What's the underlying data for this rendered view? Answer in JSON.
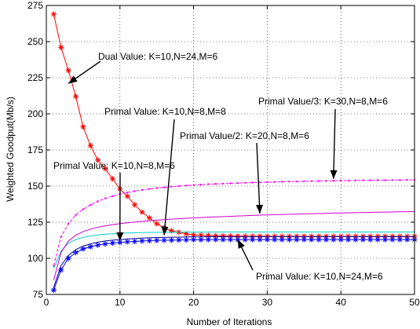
{
  "chart_data": {
    "type": "line",
    "title": "",
    "xlabel": "Number of Iterations",
    "ylabel": "Weighted Goodput(Mb/s)",
    "xlim": [
      0,
      50
    ],
    "ylim": [
      75,
      275
    ],
    "xticks": [
      0,
      10,
      20,
      30,
      40,
      50
    ],
    "yticks": [
      75,
      100,
      125,
      150,
      175,
      200,
      225,
      250,
      275
    ],
    "grid": true,
    "legend": "none",
    "series": [
      {
        "key": "dual",
        "color": "#ff0000",
        "marker": "star",
        "x": [
          1,
          2,
          3,
          4,
          5,
          6,
          7,
          8,
          9,
          10,
          11,
          12,
          13,
          14,
          15,
          16,
          17,
          18,
          19,
          20,
          21,
          22,
          23,
          24,
          25,
          26,
          27,
          28,
          29,
          30,
          31,
          32,
          33,
          34,
          35,
          36,
          37,
          38,
          39,
          40,
          41,
          42,
          43,
          44,
          45,
          46,
          47,
          48,
          49,
          50
        ],
        "values": [
          269,
          246,
          230,
          212,
          191,
          178,
          168,
          162,
          155,
          148,
          143,
          137,
          132,
          128,
          124,
          121,
          119,
          118,
          117,
          116.2,
          116,
          115.8,
          115.6,
          115.5,
          115.4,
          115.4,
          115.3,
          115.3,
          115.3,
          115.3,
          115.2,
          115.2,
          115.2,
          115.2,
          115.2,
          115.2,
          115.2,
          115.2,
          115.2,
          115.2,
          115.2,
          115.2,
          115.2,
          115.2,
          115.2,
          115.2,
          115.2,
          115.2,
          115.2,
          115.2
        ]
      },
      {
        "key": "primal_k10_n24",
        "color": "#0000ff",
        "marker": "star",
        "x": [
          1,
          2,
          3,
          4,
          5,
          6,
          7,
          8,
          9,
          10,
          11,
          12,
          13,
          14,
          15,
          16,
          17,
          18,
          19,
          20,
          21,
          22,
          23,
          24,
          25,
          26,
          27,
          28,
          29,
          30,
          31,
          32,
          33,
          34,
          35,
          36,
          37,
          38,
          39,
          40,
          41,
          42,
          43,
          44,
          45,
          46,
          47,
          48,
          49,
          50
        ],
        "values": [
          78,
          92,
          100,
          104,
          106.5,
          108,
          109.2,
          110,
          110.5,
          111,
          111.4,
          111.7,
          112,
          112.2,
          112.4,
          112.5,
          112.6,
          112.7,
          112.8,
          112.9,
          112.9,
          113,
          113,
          113,
          113,
          113,
          113,
          113,
          113,
          113,
          113,
          113,
          113,
          113,
          113,
          113,
          113,
          113,
          113,
          113,
          113,
          113,
          113,
          113,
          113,
          113,
          113,
          113,
          113,
          113
        ]
      },
      {
        "key": "primal_k10_n8_m6",
        "color": "#000099",
        "marker": "none",
        "x": [
          1,
          2,
          3,
          4,
          5,
          6,
          7,
          8,
          9,
          10,
          11,
          12,
          13,
          14,
          15,
          16,
          17,
          18,
          19,
          20,
          21,
          22,
          23,
          24,
          25,
          26,
          27,
          28,
          29,
          30,
          31,
          32,
          33,
          34,
          35,
          36,
          37,
          38,
          39,
          40,
          41,
          42,
          43,
          44,
          45,
          46,
          47,
          48,
          49,
          50
        ],
        "values": [
          80,
          95,
          102,
          106,
          108.5,
          110,
          111.2,
          112,
          112.6,
          113,
          113.4,
          113.7,
          114,
          114.2,
          114.4,
          114.5,
          114.6,
          114.7,
          114.8,
          114.9,
          114.9,
          115,
          115,
          115,
          115,
          115,
          115,
          115,
          115,
          115,
          115,
          115,
          115,
          115,
          115,
          115,
          115,
          115,
          115,
          115,
          115,
          115,
          115,
          115,
          115,
          115,
          115,
          115,
          115,
          115
        ]
      },
      {
        "key": "primal_k10_n8_m8",
        "color": "#00cccc",
        "marker": "none",
        "x": [
          1,
          2,
          3,
          4,
          5,
          6,
          7,
          8,
          9,
          10,
          11,
          12,
          13,
          14,
          15,
          16,
          17,
          18,
          19,
          20,
          21,
          22,
          23,
          24,
          25,
          26,
          27,
          28,
          29,
          30,
          31,
          32,
          33,
          34,
          35,
          36,
          37,
          38,
          39,
          40,
          41,
          42,
          43,
          44,
          45,
          46,
          47,
          48,
          49,
          50
        ],
        "values": [
          93,
          105,
          110.5,
          113,
          114.5,
          115.5,
          116.2,
          116.7,
          117,
          117.3,
          117.5,
          117.7,
          117.8,
          117.9,
          118,
          118,
          118.1,
          118.1,
          118.2,
          118.2,
          118.2,
          118.2,
          118.3,
          118.3,
          118.3,
          118.3,
          118.3,
          118.3,
          118.3,
          118.3,
          118.3,
          118.3,
          118.3,
          118.3,
          118.3,
          118.3,
          118.3,
          118.3,
          118.3,
          118.3,
          118.3,
          118.3,
          118.3,
          118.3,
          118.3,
          118.3,
          118.3,
          118.3,
          118.3,
          118.3
        ]
      },
      {
        "key": "primal_half_k20",
        "color": "#cc00cc",
        "marker": "none",
        "x": [
          1,
          2,
          3,
          4,
          5,
          6,
          7,
          8,
          9,
          10,
          11,
          12,
          13,
          14,
          15,
          16,
          17,
          18,
          19,
          20,
          21,
          22,
          23,
          24,
          25,
          26,
          27,
          28,
          29,
          30,
          31,
          32,
          33,
          34,
          35,
          36,
          37,
          38,
          39,
          40,
          41,
          42,
          43,
          44,
          45,
          46,
          47,
          48,
          49,
          50
        ],
        "values": [
          85,
          104,
          112,
          116,
          118.5,
          120.2,
          121.5,
          122.5,
          123.3,
          124,
          124.6,
          125.1,
          125.6,
          126,
          126.4,
          126.8,
          127.1,
          127.4,
          127.7,
          128,
          128.2,
          128.5,
          128.7,
          128.9,
          129.1,
          129.3,
          129.5,
          129.7,
          129.9,
          130,
          130.2,
          130.3,
          130.5,
          130.6,
          130.8,
          130.9,
          131,
          131.1,
          131.3,
          131.4,
          131.5,
          131.6,
          131.7,
          131.8,
          131.9,
          132,
          132.1,
          132.2,
          132.3,
          132.4
        ]
      },
      {
        "key": "primal_third_k30",
        "color": "#ff00ff",
        "marker": "dot",
        "x": [
          1,
          2,
          3,
          4,
          5,
          6,
          7,
          8,
          9,
          10,
          11,
          12,
          13,
          14,
          15,
          16,
          17,
          18,
          19,
          20,
          21,
          22,
          23,
          24,
          25,
          26,
          27,
          28,
          29,
          30,
          31,
          32,
          33,
          34,
          35,
          36,
          37,
          38,
          39,
          40,
          41,
          42,
          43,
          44,
          45,
          46,
          47,
          48,
          49,
          50
        ],
        "values": [
          95,
          115,
          124,
          130,
          134,
          137,
          139.5,
          141.5,
          143,
          144.5,
          145.6,
          146.5,
          147.3,
          148,
          148.6,
          149.1,
          149.6,
          150,
          150.4,
          150.7,
          151,
          151.3,
          151.5,
          151.7,
          151.9,
          152.1,
          152.3,
          152.4,
          152.6,
          152.7,
          152.8,
          153,
          153.1,
          153.2,
          153.3,
          153.4,
          153.5,
          153.6,
          153.7,
          153.8,
          153.8,
          153.9,
          154,
          154,
          154.1,
          154.1,
          154.2,
          154.2,
          154.3,
          154.3
        ]
      }
    ],
    "annotations": [
      {
        "text": "Dual Value: K=10,N=24,M=6",
        "point": [
          3,
          221
        ]
      },
      {
        "text": "Primal Value: K=10,N=8,M=8",
        "point": [
          16,
          116
        ]
      },
      {
        "text": "Primal Value/3: K=30,N=8,M=6",
        "point": [
          39,
          155
        ]
      },
      {
        "text": "Primal Value/2: K=20,N=8,M=6",
        "point": [
          29,
          131
        ]
      },
      {
        "text": "Primal Value: K=10,N=8,M=6",
        "point": [
          10,
          112
        ]
      },
      {
        "text": "Primal Value: K=10,N=24,M=6",
        "point": [
          26,
          113
        ]
      }
    ]
  }
}
